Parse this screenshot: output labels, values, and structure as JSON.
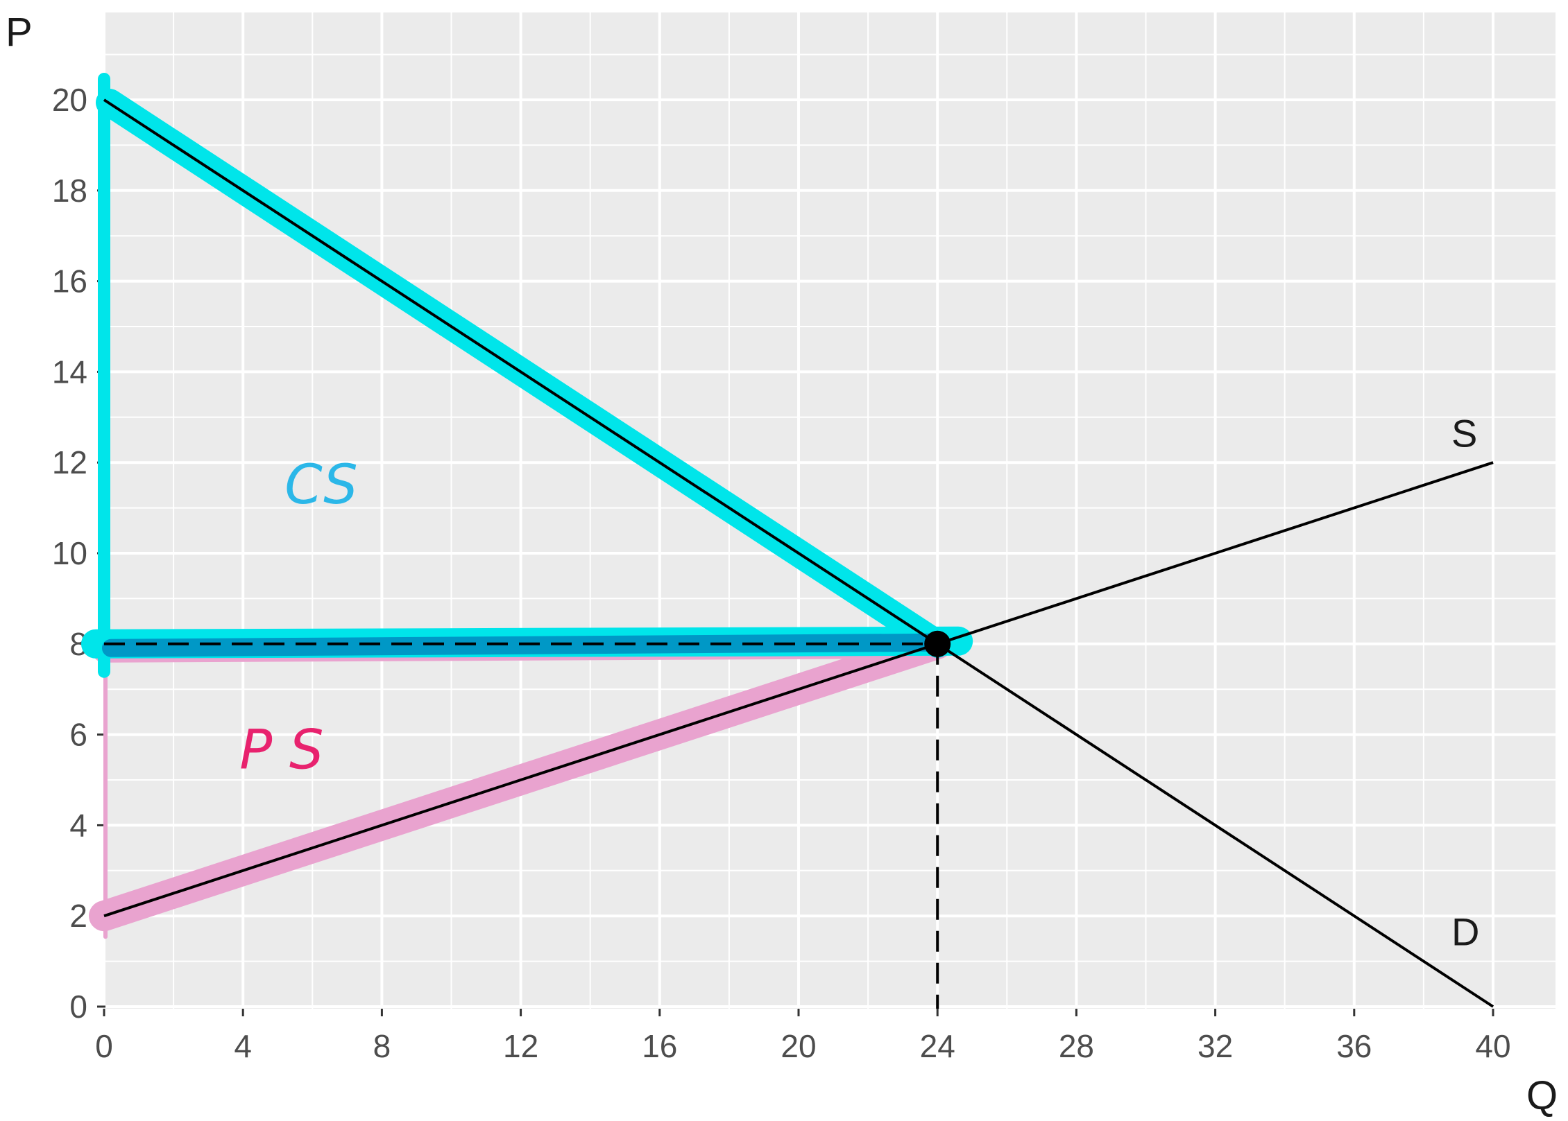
{
  "chart_data": {
    "type": "line",
    "xlabel": "Q",
    "ylabel": "P",
    "xlim": [
      0,
      40
    ],
    "ylim": [
      0,
      20
    ],
    "x_ticks": [
      0,
      4,
      8,
      12,
      16,
      20,
      24,
      28,
      32,
      36,
      40
    ],
    "y_ticks": [
      0,
      2,
      4,
      6,
      8,
      10,
      12,
      14,
      16,
      18,
      20
    ],
    "grid": true,
    "series": [
      {
        "name": "S",
        "x": [
          0,
          40
        ],
        "y": [
          2,
          12
        ]
      },
      {
        "name": "D",
        "x": [
          0,
          40
        ],
        "y": [
          20,
          0
        ]
      }
    ],
    "equilibrium": {
      "q": 24,
      "p": 8
    },
    "annotations": [
      {
        "text": "CS",
        "color": "#2bb7e8",
        "region": "consumer surplus",
        "q_range": [
          0,
          24
        ],
        "p_range": [
          8,
          20
        ]
      },
      {
        "text": "P S",
        "color": "#e8226e",
        "region": "producer surplus",
        "q_range": [
          0,
          24
        ],
        "p_range": [
          2,
          8
        ]
      }
    ],
    "colors": {
      "panel": "#ebebeb",
      "grid": "#ffffff",
      "curve": "#000000",
      "cs_highlight": "#00e5ea",
      "cs_highlight_dark": "#0098c6",
      "ps_highlight": "#e9a3cf"
    }
  }
}
